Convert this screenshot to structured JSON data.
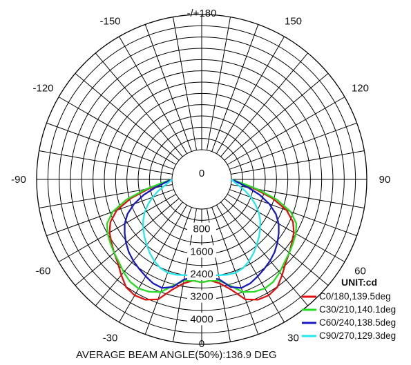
{
  "chart_data": {
    "type": "polar",
    "unit_label": "UNIT:cd",
    "footer": "AVERAGE BEAM ANGLE(50%):136.9 DEG",
    "angle_labels": [
      {
        "angle": 180,
        "text": "-/+180"
      },
      {
        "angle": -150,
        "text": "-150"
      },
      {
        "angle": 150,
        "text": "150"
      },
      {
        "angle": -120,
        "text": "-120"
      },
      {
        "angle": 120,
        "text": "120"
      },
      {
        "angle": -90,
        "text": "-90"
      },
      {
        "angle": 90,
        "text": "90"
      },
      {
        "angle": -60,
        "text": "-60"
      },
      {
        "angle": 60,
        "text": "60"
      },
      {
        "angle": -30,
        "text": "-30"
      },
      {
        "angle": 30,
        "text": "30"
      },
      {
        "angle": 0,
        "text": "0"
      }
    ],
    "radial_ticks": [
      {
        "value": 0,
        "text": "0"
      },
      {
        "value": 800,
        "text": "800"
      },
      {
        "value": 1600,
        "text": "1600"
      },
      {
        "value": 2400,
        "text": "2400"
      },
      {
        "value": 3200,
        "text": "3200"
      },
      {
        "value": 4000,
        "text": "4000"
      }
    ],
    "r_max": 4800,
    "series": [
      {
        "name": "C0/180,139.5deg",
        "color": "#e01010",
        "gamma": [
          0,
          5,
          10,
          15,
          20,
          25,
          30,
          35,
          40,
          45,
          50,
          55,
          60,
          65,
          70,
          75,
          80,
          85,
          90
        ],
        "cd": [
          2600,
          2550,
          2700,
          3000,
          3480,
          3660,
          3700,
          3620,
          3380,
          3150,
          3000,
          2850,
          2720,
          2520,
          2150,
          1550,
          850,
          300,
          0
        ]
      },
      {
        "name": "C30/210,140.1deg",
        "color": "#22dd22",
        "gamma": [
          0,
          5,
          10,
          15,
          20,
          25,
          30,
          35,
          40,
          45,
          50,
          55,
          60,
          65,
          70,
          75,
          80,
          85,
          90
        ],
        "cd": [
          2600,
          2550,
          2600,
          2850,
          3200,
          3350,
          3420,
          3380,
          3250,
          3100,
          3000,
          2900,
          2800,
          2650,
          2300,
          1700,
          950,
          350,
          0
        ]
      },
      {
        "name": "C60/240,138.5deg",
        "color": "#1818c0",
        "gamma": [
          0,
          5,
          10,
          15,
          20,
          25,
          30,
          35,
          40,
          45,
          50,
          55,
          60,
          65,
          70,
          75,
          80,
          85,
          90
        ],
        "cd": [
          2500,
          2450,
          2550,
          2900,
          3050,
          3020,
          2920,
          2820,
          2720,
          2600,
          2450,
          2280,
          2100,
          1850,
          1500,
          1080,
          620,
          250,
          0
        ]
      },
      {
        "name": "C90/270,129.3deg",
        "color": "#22e8ee",
        "gamma": [
          0,
          5,
          10,
          15,
          20,
          25,
          30,
          35,
          40,
          45,
          50,
          55,
          60,
          65,
          70,
          75,
          80,
          85,
          90
        ],
        "cd": [
          2300,
          2350,
          2400,
          2450,
          2470,
          2420,
          2300,
          2150,
          1980,
          1820,
          1650,
          1480,
          1280,
          1050,
          800,
          550,
          300,
          120,
          0
        ]
      }
    ]
  }
}
